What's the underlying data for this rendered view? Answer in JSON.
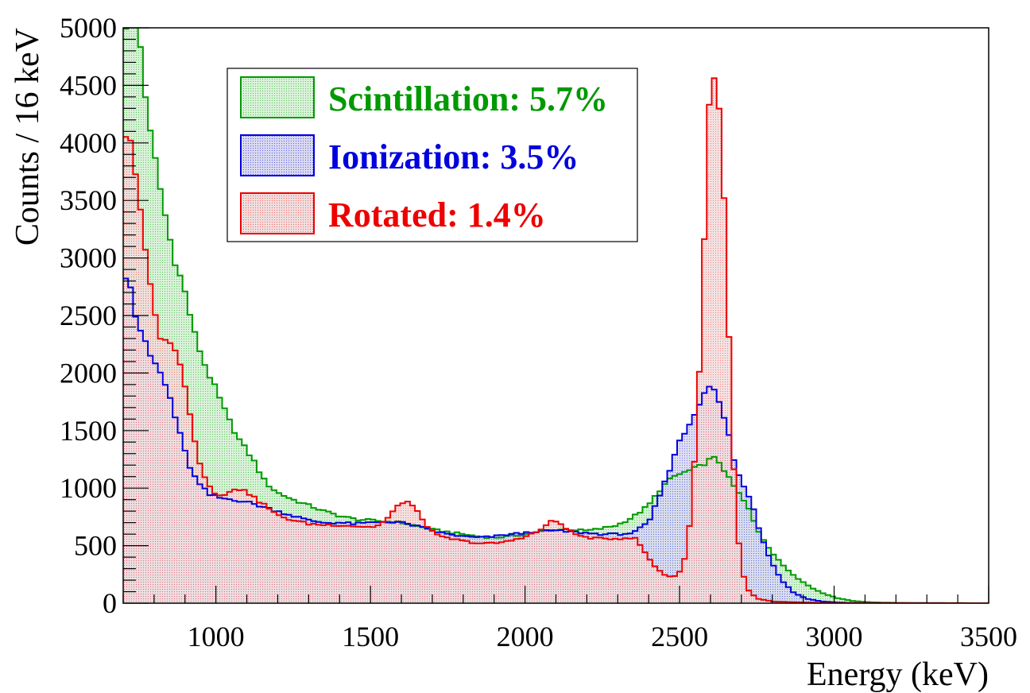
{
  "chart_data": {
    "type": "histogram",
    "xlabel": "Energy (keV)",
    "ylabel": "Counts / 16 keV",
    "xlim": [
      700,
      3500
    ],
    "ylim": [
      0,
      5000
    ],
    "x_ticks": [
      "1000",
      "1500",
      "2000",
      "2500",
      "3000",
      "3500"
    ],
    "y_ticks": [
      "0",
      "500",
      "1000",
      "1500",
      "2000",
      "2500",
      "3000",
      "3500",
      "4000",
      "4500",
      "5000"
    ],
    "bin_width": 16,
    "grid": false,
    "legend_position": "top-left",
    "series": [
      {
        "name": "Scintillation: 5.7%",
        "color": "#009900",
        "fill": "#c9ecc9",
        "points": [
          [
            700,
            5050
          ],
          [
            740,
            5000
          ],
          [
            760,
            4800
          ],
          [
            780,
            4180
          ],
          [
            800,
            3900
          ],
          [
            830,
            3450
          ],
          [
            860,
            3050
          ],
          [
            900,
            2700
          ],
          [
            930,
            2350
          ],
          [
            960,
            2100
          ],
          [
            1000,
            1850
          ],
          [
            1040,
            1600
          ],
          [
            1080,
            1400
          ],
          [
            1120,
            1250
          ],
          [
            1160,
            1050
          ],
          [
            1200,
            960
          ],
          [
            1250,
            900
          ],
          [
            1300,
            850
          ],
          [
            1350,
            800
          ],
          [
            1400,
            760
          ],
          [
            1450,
            730
          ],
          [
            1500,
            720
          ],
          [
            1550,
            710
          ],
          [
            1600,
            700
          ],
          [
            1650,
            670
          ],
          [
            1700,
            640
          ],
          [
            1750,
            620
          ],
          [
            1800,
            600
          ],
          [
            1850,
            580
          ],
          [
            1900,
            570
          ],
          [
            1950,
            580
          ],
          [
            2000,
            600
          ],
          [
            2050,
            620
          ],
          [
            2100,
            640
          ],
          [
            2150,
            640
          ],
          [
            2200,
            630
          ],
          [
            2250,
            650
          ],
          [
            2300,
            680
          ],
          [
            2350,
            750
          ],
          [
            2400,
            850
          ],
          [
            2440,
            1000
          ],
          [
            2480,
            1100
          ],
          [
            2520,
            1140
          ],
          [
            2560,
            1180
          ],
          [
            2600,
            1250
          ],
          [
            2620,
            1260
          ],
          [
            2640,
            1180
          ],
          [
            2660,
            1080
          ],
          [
            2690,
            960
          ],
          [
            2720,
            840
          ],
          [
            2750,
            650
          ],
          [
            2780,
            520
          ],
          [
            2810,
            400
          ],
          [
            2850,
            290
          ],
          [
            2890,
            200
          ],
          [
            2930,
            130
          ],
          [
            2970,
            80
          ],
          [
            3010,
            45
          ],
          [
            3060,
            20
          ],
          [
            3120,
            8
          ],
          [
            3200,
            3
          ],
          [
            3300,
            1
          ],
          [
            3500,
            0
          ]
        ]
      },
      {
        "name": "Ionization: 3.5%",
        "color": "#0000dd",
        "fill": "#c9c9ec",
        "points": [
          [
            700,
            2870
          ],
          [
            720,
            2850
          ],
          [
            740,
            2500
          ],
          [
            760,
            2350
          ],
          [
            780,
            2180
          ],
          [
            800,
            2100
          ],
          [
            820,
            2000
          ],
          [
            850,
            1800
          ],
          [
            880,
            1500
          ],
          [
            910,
            1220
          ],
          [
            940,
            1050
          ],
          [
            980,
            940
          ],
          [
            1020,
            910
          ],
          [
            1060,
            900
          ],
          [
            1100,
            880
          ],
          [
            1150,
            840
          ],
          [
            1200,
            800
          ],
          [
            1250,
            760
          ],
          [
            1300,
            720
          ],
          [
            1350,
            700
          ],
          [
            1400,
            700
          ],
          [
            1450,
            690
          ],
          [
            1500,
            700
          ],
          [
            1550,
            710
          ],
          [
            1600,
            700
          ],
          [
            1650,
            670
          ],
          [
            1700,
            630
          ],
          [
            1750,
            600
          ],
          [
            1800,
            580
          ],
          [
            1850,
            570
          ],
          [
            1900,
            580
          ],
          [
            1950,
            600
          ],
          [
            2000,
            610
          ],
          [
            2050,
            630
          ],
          [
            2100,
            630
          ],
          [
            2150,
            620
          ],
          [
            2200,
            610
          ],
          [
            2250,
            600
          ],
          [
            2300,
            600
          ],
          [
            2350,
            610
          ],
          [
            2400,
            700
          ],
          [
            2430,
            900
          ],
          [
            2460,
            1100
          ],
          [
            2490,
            1350
          ],
          [
            2520,
            1500
          ],
          [
            2550,
            1650
          ],
          [
            2580,
            1850
          ],
          [
            2600,
            1900
          ],
          [
            2620,
            1800
          ],
          [
            2640,
            1650
          ],
          [
            2660,
            1450
          ],
          [
            2680,
            1200
          ],
          [
            2700,
            1050
          ],
          [
            2720,
            950
          ],
          [
            2740,
            820
          ],
          [
            2760,
            620
          ],
          [
            2790,
            400
          ],
          [
            2830,
            200
          ],
          [
            2870,
            90
          ],
          [
            2910,
            40
          ],
          [
            2960,
            15
          ],
          [
            3020,
            5
          ],
          [
            3100,
            1
          ],
          [
            3500,
            0
          ]
        ]
      },
      {
        "name": "Rotated: 1.4%",
        "color": "#ee0000",
        "fill": "#ecc9c9",
        "points": [
          [
            700,
            4000
          ],
          [
            710,
            4100
          ],
          [
            730,
            4000
          ],
          [
            750,
            3500
          ],
          [
            770,
            3100
          ],
          [
            790,
            2700
          ],
          [
            810,
            2400
          ],
          [
            830,
            2250
          ],
          [
            850,
            2300
          ],
          [
            870,
            2200
          ],
          [
            890,
            2000
          ],
          [
            910,
            1750
          ],
          [
            930,
            1450
          ],
          [
            950,
            1200
          ],
          [
            970,
            1050
          ],
          [
            1000,
            950
          ],
          [
            1030,
            950
          ],
          [
            1060,
            980
          ],
          [
            1090,
            1000
          ],
          [
            1120,
            920
          ],
          [
            1160,
            850
          ],
          [
            1200,
            760
          ],
          [
            1250,
            720
          ],
          [
            1300,
            690
          ],
          [
            1350,
            680
          ],
          [
            1400,
            680
          ],
          [
            1450,
            670
          ],
          [
            1500,
            660
          ],
          [
            1530,
            680
          ],
          [
            1560,
            750
          ],
          [
            1590,
            850
          ],
          [
            1610,
            890
          ],
          [
            1630,
            870
          ],
          [
            1660,
            760
          ],
          [
            1690,
            650
          ],
          [
            1720,
            580
          ],
          [
            1760,
            560
          ],
          [
            1800,
            540
          ],
          [
            1850,
            520
          ],
          [
            1900,
            520
          ],
          [
            1950,
            540
          ],
          [
            2000,
            580
          ],
          [
            2040,
            620
          ],
          [
            2070,
            680
          ],
          [
            2090,
            720
          ],
          [
            2110,
            700
          ],
          [
            2140,
            640
          ],
          [
            2170,
            590
          ],
          [
            2200,
            570
          ],
          [
            2250,
            560
          ],
          [
            2300,
            560
          ],
          [
            2330,
            570
          ],
          [
            2360,
            560
          ],
          [
            2390,
            430
          ],
          [
            2420,
            320
          ],
          [
            2450,
            250
          ],
          [
            2470,
            230
          ],
          [
            2490,
            240
          ],
          [
            2510,
            300
          ],
          [
            2530,
            600
          ],
          [
            2550,
            1300
          ],
          [
            2570,
            2300
          ],
          [
            2580,
            3200
          ],
          [
            2595,
            4300
          ],
          [
            2610,
            4600
          ],
          [
            2625,
            4450
          ],
          [
            2640,
            3800
          ],
          [
            2655,
            2700
          ],
          [
            2670,
            1500
          ],
          [
            2685,
            700
          ],
          [
            2700,
            300
          ],
          [
            2720,
            120
          ],
          [
            2750,
            40
          ],
          [
            2800,
            15
          ],
          [
            2900,
            5
          ],
          [
            3000,
            2
          ],
          [
            3500,
            0
          ]
        ]
      }
    ]
  }
}
